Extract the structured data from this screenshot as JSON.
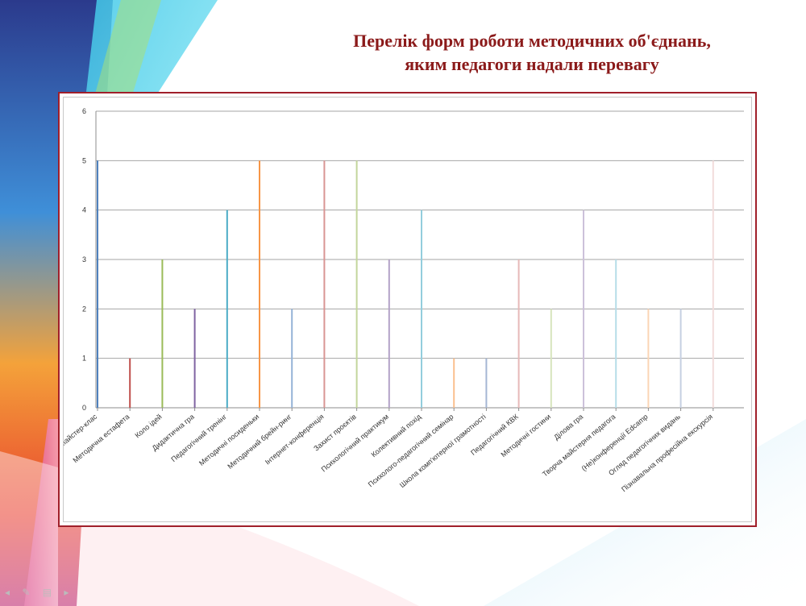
{
  "title_line1": "Перелік форм роботи методичних об'єднань,",
  "title_line2": "яким педагоги надали перевагу",
  "colors": {
    "title": "#8b1a1a",
    "frame": "#a01f2a",
    "grid": "#a6a6a6"
  },
  "chart_data": {
    "type": "bar",
    "title": "",
    "xlabel": "",
    "ylabel": "",
    "ylim": [
      0,
      6
    ],
    "yticks": [
      0,
      1,
      2,
      3,
      4,
      5,
      6
    ],
    "grid": true,
    "legend": "none",
    "categories": [
      "Майстер-клас",
      "Методична естафета",
      "Коло ідей",
      "Дидактична гра",
      "Педагогічний тренінг",
      "Методичні посиденьки",
      "Методичний брейн-ринг",
      "Інтернет-конференція",
      "Захист проєктів",
      "Психологічний практикум",
      "Колективний похід",
      "Психолого-педагогічний семінар",
      "Школа комп'ютерної грамотності",
      "Педагогічний КВК",
      "Методичні гостини",
      "Ділова гра",
      "Творча майстерня педагога",
      "(Не)конференції Edcamp",
      "Огляд педагогічних видань",
      "Пізнавальна професійна екскурсія"
    ],
    "values": [
      5,
      1,
      3,
      2,
      4,
      5,
      2,
      5,
      5,
      3,
      4,
      1,
      1,
      3,
      2,
      4,
      3,
      2,
      2,
      5
    ],
    "bar_colors": [
      "#4f81bd",
      "#c0504d",
      "#9bbb59",
      "#8064a2",
      "#4bacc6",
      "#f79646",
      "#95b3d7",
      "#d99694",
      "#c3d69b",
      "#b3a2c7",
      "#93cddd",
      "#fac08f",
      "#a5b6d4",
      "#e6b9b8",
      "#d7e4bd",
      "#ccc1da",
      "#b7dde8",
      "#fbd5b5",
      "#c6d0e2",
      "#f2dcdb"
    ]
  }
}
